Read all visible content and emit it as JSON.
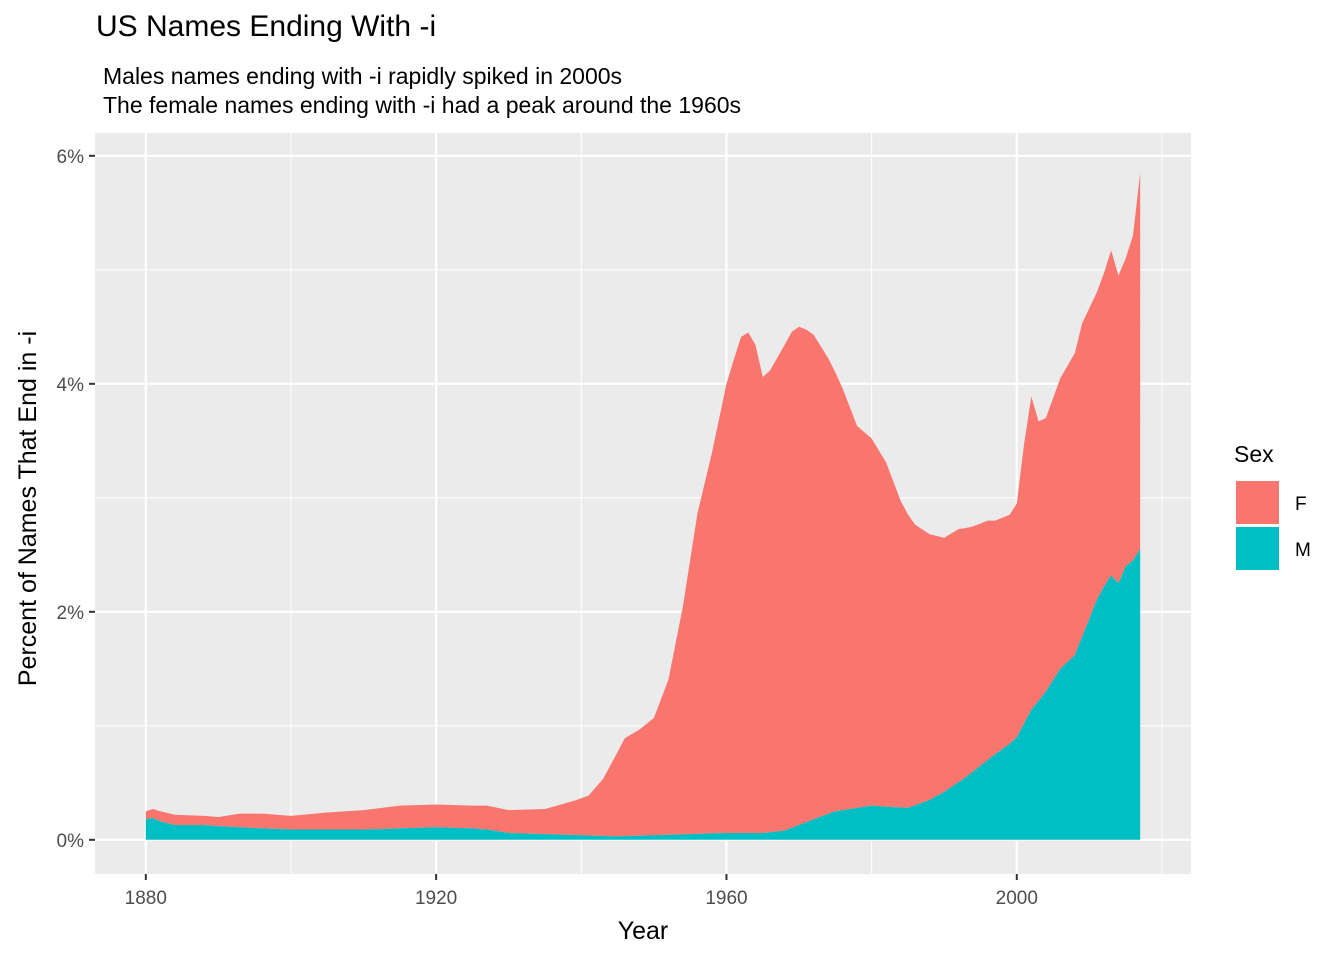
{
  "chart_data": {
    "type": "area",
    "stacked": true,
    "title": "US Names Ending With -i",
    "subtitle": [
      "Males names ending with -i rapidly spiked in 2000s",
      "The female names ending with -i had a peak around the 1960s"
    ],
    "xlabel": "Year",
    "ylabel": "Percent of Names That End in -i",
    "xlim": [
      1873,
      2024
    ],
    "ylim": [
      -0.3,
      6.2
    ],
    "x_ticks": [
      1880,
      1920,
      1960,
      2000
    ],
    "x_tick_labels": [
      "1880",
      "1920",
      "1960",
      "2000"
    ],
    "y_ticks": [
      0,
      2,
      4,
      6
    ],
    "y_tick_labels": [
      "0%",
      "2%",
      "4%",
      "6%"
    ],
    "grid": true,
    "legend": {
      "title": "Sex",
      "position": "right",
      "entries": [
        "F",
        "M"
      ]
    },
    "series": [
      {
        "name": "M",
        "color": "#00BFC4",
        "x": [
          1880,
          1881,
          1882,
          1884,
          1888,
          1890,
          1893,
          1896,
          1900,
          1905,
          1910,
          1915,
          1920,
          1925,
          1927,
          1930,
          1935,
          1940,
          1945,
          1950,
          1955,
          1960,
          1965,
          1968,
          1970,
          1972,
          1975,
          1978,
          1980,
          1982,
          1985,
          1988,
          1990,
          1993,
          1995,
          1997,
          1999,
          2000,
          2002,
          2004,
          2006,
          2008,
          2009,
          2011,
          2012,
          2013,
          2014,
          2015,
          2016,
          2017
        ],
        "values": [
          0.18,
          0.19,
          0.16,
          0.13,
          0.13,
          0.12,
          0.11,
          0.1,
          0.09,
          0.09,
          0.09,
          0.1,
          0.11,
          0.1,
          0.09,
          0.06,
          0.05,
          0.04,
          0.03,
          0.04,
          0.05,
          0.06,
          0.06,
          0.08,
          0.13,
          0.18,
          0.25,
          0.28,
          0.3,
          0.29,
          0.28,
          0.35,
          0.42,
          0.55,
          0.65,
          0.75,
          0.84,
          0.9,
          1.14,
          1.3,
          1.5,
          1.62,
          1.78,
          2.1,
          2.22,
          2.32,
          2.25,
          2.4,
          2.45,
          2.55
        ]
      },
      {
        "name": "F",
        "color": "#F8766D",
        "x": [
          1880,
          1881,
          1882,
          1884,
          1888,
          1890,
          1893,
          1896,
          1900,
          1905,
          1910,
          1915,
          1920,
          1925,
          1927,
          1930,
          1935,
          1939,
          1941,
          1943,
          1945,
          1946,
          1948,
          1950,
          1952,
          1954,
          1956,
          1958,
          1960,
          1961,
          1962,
          1963,
          1964,
          1965,
          1966,
          1968,
          1969,
          1970,
          1971,
          1972,
          1974,
          1976,
          1978,
          1980,
          1982,
          1984,
          1986,
          1988,
          1990,
          1992,
          1994,
          1996,
          1997,
          1998,
          1999,
          2000,
          2001,
          2002,
          2003,
          2004,
          2006,
          2008,
          2009,
          2011,
          2012,
          2013,
          2014,
          2015,
          2016,
          2017
        ],
        "values": [
          0.07,
          0.08,
          0.09,
          0.09,
          0.08,
          0.08,
          0.12,
          0.13,
          0.12,
          0.15,
          0.17,
          0.2,
          0.2,
          0.2,
          0.21,
          0.2,
          0.22,
          0.3,
          0.35,
          0.5,
          0.74,
          0.86,
          0.93,
          1.03,
          1.36,
          2.0,
          2.81,
          3.34,
          3.94,
          4.15,
          4.35,
          4.39,
          4.28,
          4.0,
          4.05,
          4.26,
          4.35,
          4.37,
          4.32,
          4.25,
          4.0,
          3.7,
          3.35,
          3.22,
          3.02,
          2.69,
          2.46,
          2.33,
          2.23,
          2.22,
          2.15,
          2.1,
          2.05,
          2.03,
          2.01,
          2.05,
          2.45,
          2.75,
          2.45,
          2.4,
          2.55,
          2.65,
          2.75,
          2.7,
          2.75,
          2.85,
          2.7,
          2.7,
          2.85,
          3.3
        ]
      }
    ]
  }
}
